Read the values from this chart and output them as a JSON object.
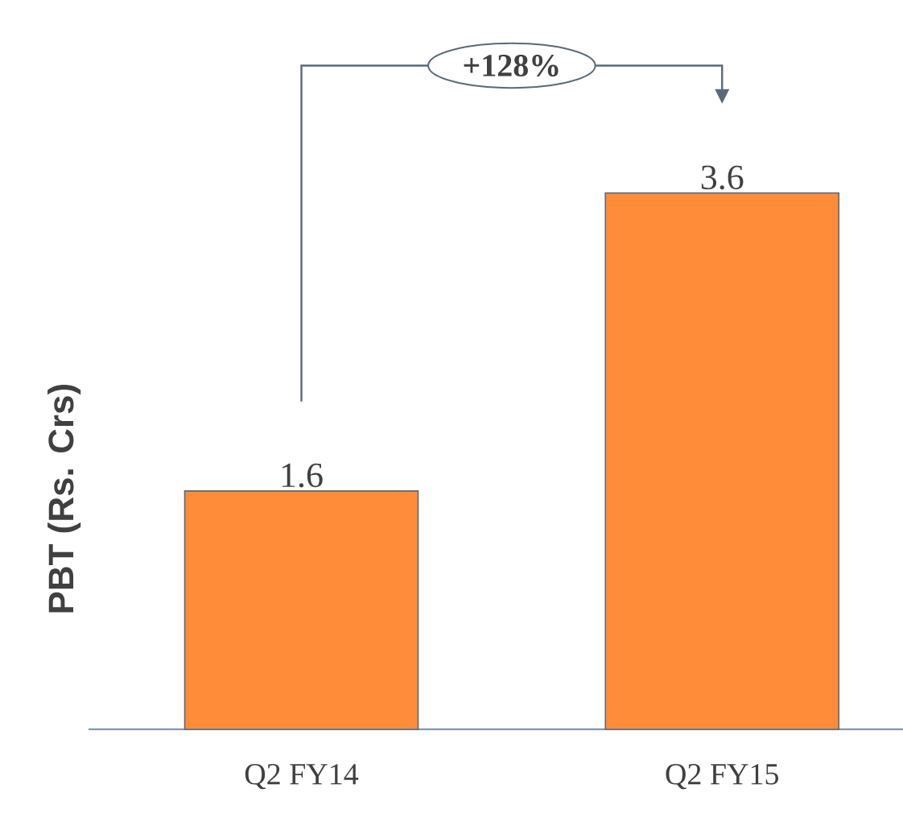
{
  "chart_data": {
    "type": "bar",
    "categories": [
      "Q2 FY14",
      "Q2 FY15"
    ],
    "values": [
      1.6,
      3.6
    ],
    "color": "#ff8c38",
    "ylabel": "PBT (Rs. Crs)",
    "data_labels": true,
    "annotations": [
      "+128%"
    ]
  }
}
